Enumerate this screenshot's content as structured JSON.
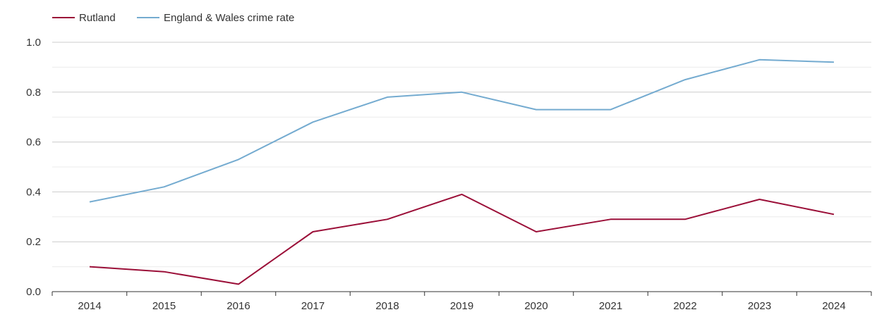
{
  "chart_data": {
    "type": "line",
    "title": "",
    "xlabel": "",
    "ylabel": "",
    "categories": [
      "2014",
      "2015",
      "2016",
      "2017",
      "2018",
      "2019",
      "2020",
      "2021",
      "2022",
      "2023",
      "2024"
    ],
    "ylim": [
      0,
      1.0
    ],
    "yticks": [
      "0.0",
      "0.2",
      "0.4",
      "0.6",
      "0.8",
      "1.0"
    ],
    "ytick_values": [
      0,
      0.2,
      0.4,
      0.6,
      0.8,
      1.0
    ],
    "grid": true,
    "legend_position": "top-left",
    "series": [
      {
        "name": "Rutland",
        "color": "#9b0f38",
        "values": [
          0.1,
          0.08,
          0.03,
          0.24,
          0.29,
          0.39,
          0.24,
          0.29,
          0.29,
          0.37,
          0.31
        ]
      },
      {
        "name": "England & Wales crime rate",
        "color": "#74abd0",
        "values": [
          0.36,
          0.42,
          0.53,
          0.68,
          0.78,
          0.8,
          0.73,
          0.73,
          0.85,
          0.93,
          0.92
        ]
      }
    ]
  }
}
